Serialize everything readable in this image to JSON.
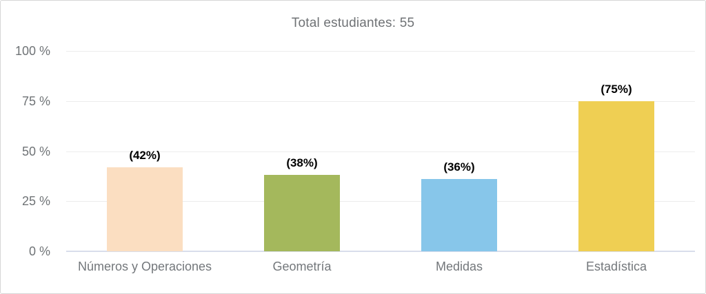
{
  "page": {
    "background": "#ffffff",
    "card_border_color": "#d6d6d6"
  },
  "chart_data": {
    "type": "bar",
    "title": "Total estudiantes: 55",
    "categories": [
      "Números y Operaciones",
      "Geometría",
      "Medidas",
      "Estadística"
    ],
    "values": [
      42,
      38,
      36,
      75
    ],
    "data_labels": [
      "(42%)",
      "(38%)",
      "(36%)",
      "(75%)"
    ],
    "bar_colors": [
      "#FBDEC1",
      "#A4B85C",
      "#87C6EA",
      "#EFCF53"
    ],
    "ytick_labels": [
      "0 %",
      "25 %",
      "50 %",
      "75 %",
      "100 %"
    ],
    "ytick_values": [
      0,
      25,
      50,
      75,
      100
    ],
    "ylim": [
      0,
      100
    ],
    "xlabel": "",
    "ylabel": "",
    "grid": "horizontal",
    "legend": "none",
    "colors": {
      "gridline": "#ececec",
      "zero_axis_line": "#d8ddeb",
      "title_text": "#6f7275",
      "ytick_text": "#6f7376",
      "xtick_text": "#73777b",
      "data_label_text": "#000000"
    }
  }
}
